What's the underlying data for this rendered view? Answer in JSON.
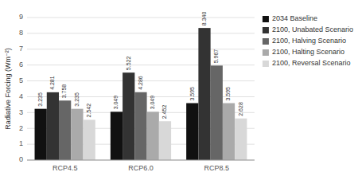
{
  "chart_data": {
    "type": "bar",
    "categories": [
      "RCP4.5",
      "RCP6.0",
      "RCP8.5"
    ],
    "series": [
      {
        "name": "2034 Baseline",
        "color": "#111111",
        "values": [
          3.235,
          3.049,
          3.595
        ]
      },
      {
        "name": "2100, Unabated Scenario",
        "color": "#333333",
        "values": [
          4.281,
          5.522,
          8.34
        ],
        "value_labels": [
          "4.281",
          "5.522",
          "8.340"
        ]
      },
      {
        "name": "2100, Halving Scenario",
        "color": "#666666",
        "values": [
          3.758,
          4.286,
          5.967
        ]
      },
      {
        "name": "2100, Halting Scenario",
        "color": "#aaaaaa",
        "values": [
          3.235,
          3.049,
          3.595
        ]
      },
      {
        "name": "2100, Reversal Scenario",
        "color": "#d8d8d8",
        "values": [
          2.542,
          2.452,
          2.628
        ]
      }
    ],
    "ylabel": "Radiative Forcing (Wm⁻²)",
    "ylim": [
      0,
      9
    ],
    "yticks": [
      0,
      1,
      2,
      3,
      4,
      5,
      6,
      7,
      8,
      9
    ],
    "grid": true,
    "legend": "right",
    "data_labels": true
  }
}
